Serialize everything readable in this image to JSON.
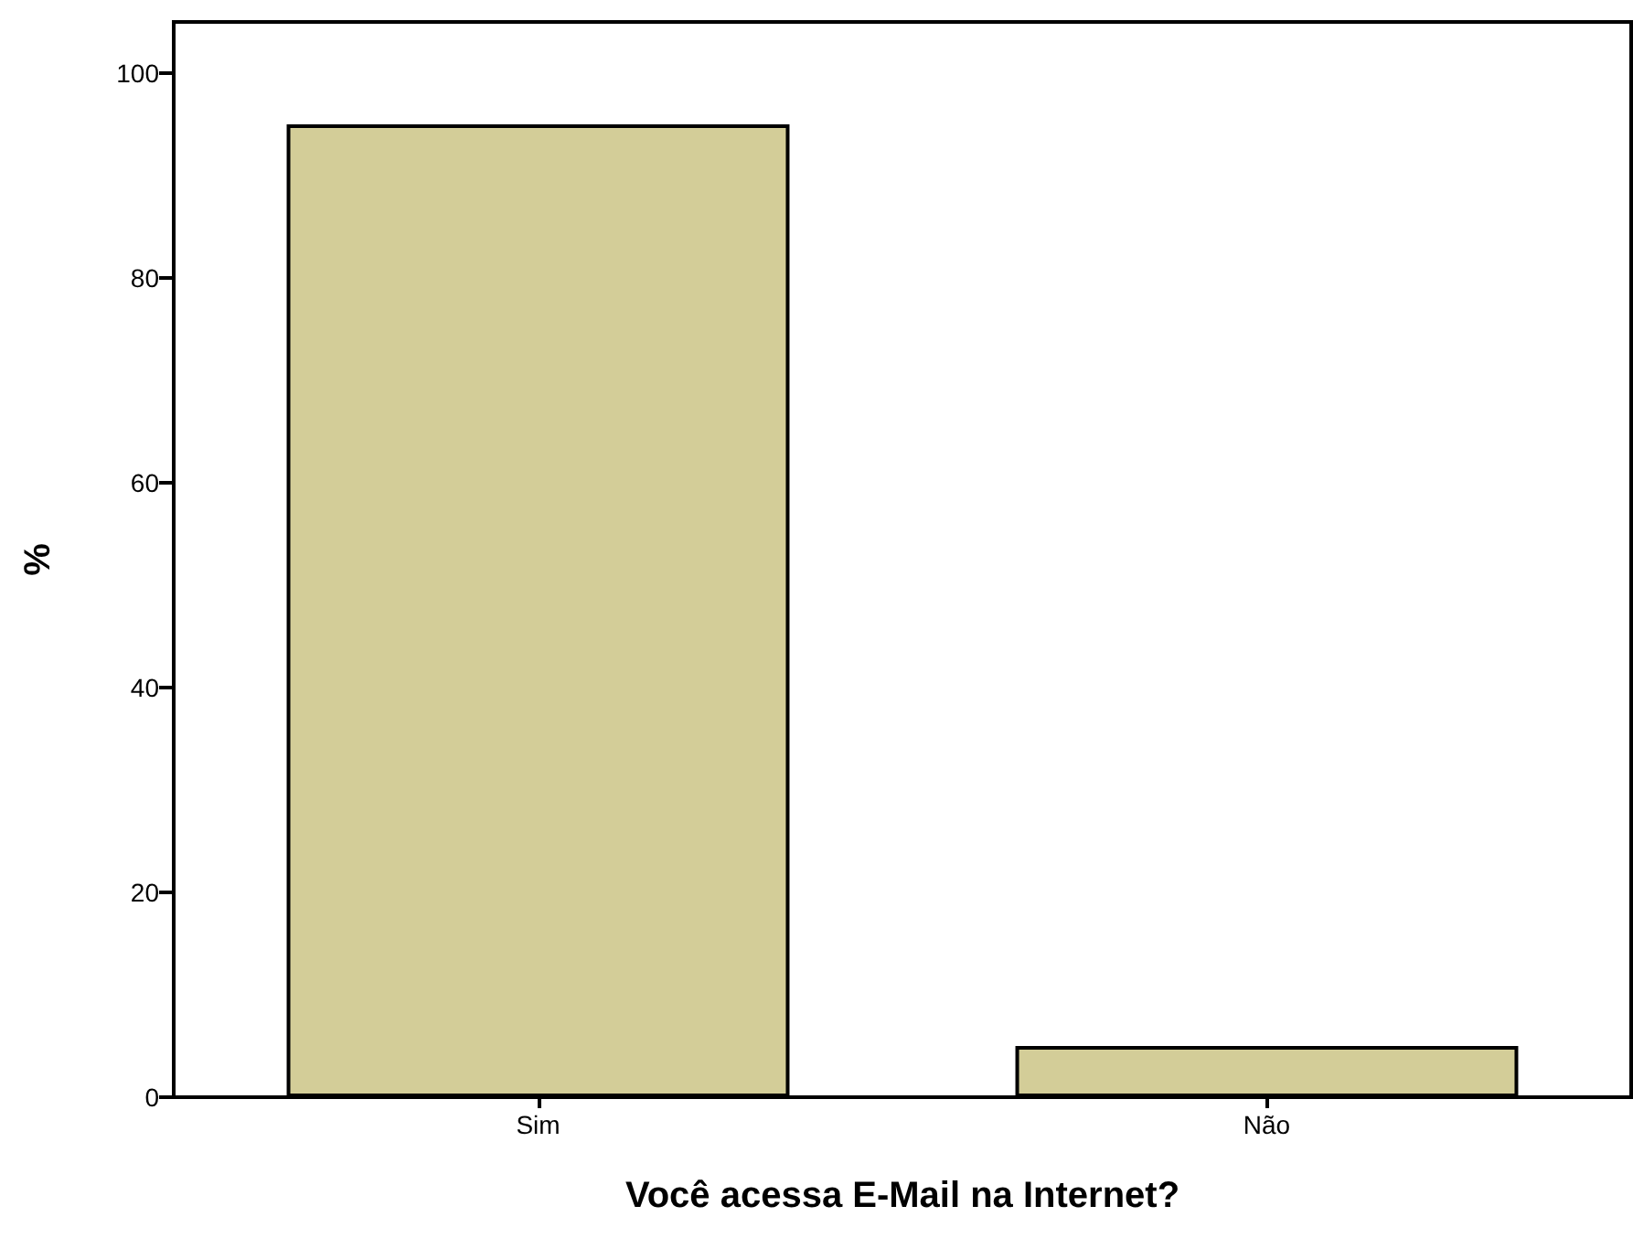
{
  "chart_data": {
    "type": "bar",
    "xlabel": "Você acessa E-Mail na Internet?",
    "ylabel": "%",
    "categories": [
      "Sim",
      "Não"
    ],
    "values": [
      95,
      5
    ],
    "color": "#d3cd98",
    "ylim": [
      0,
      105
    ],
    "yticks": [
      0,
      20,
      40,
      60,
      80,
      100
    ],
    "grid": false
  }
}
